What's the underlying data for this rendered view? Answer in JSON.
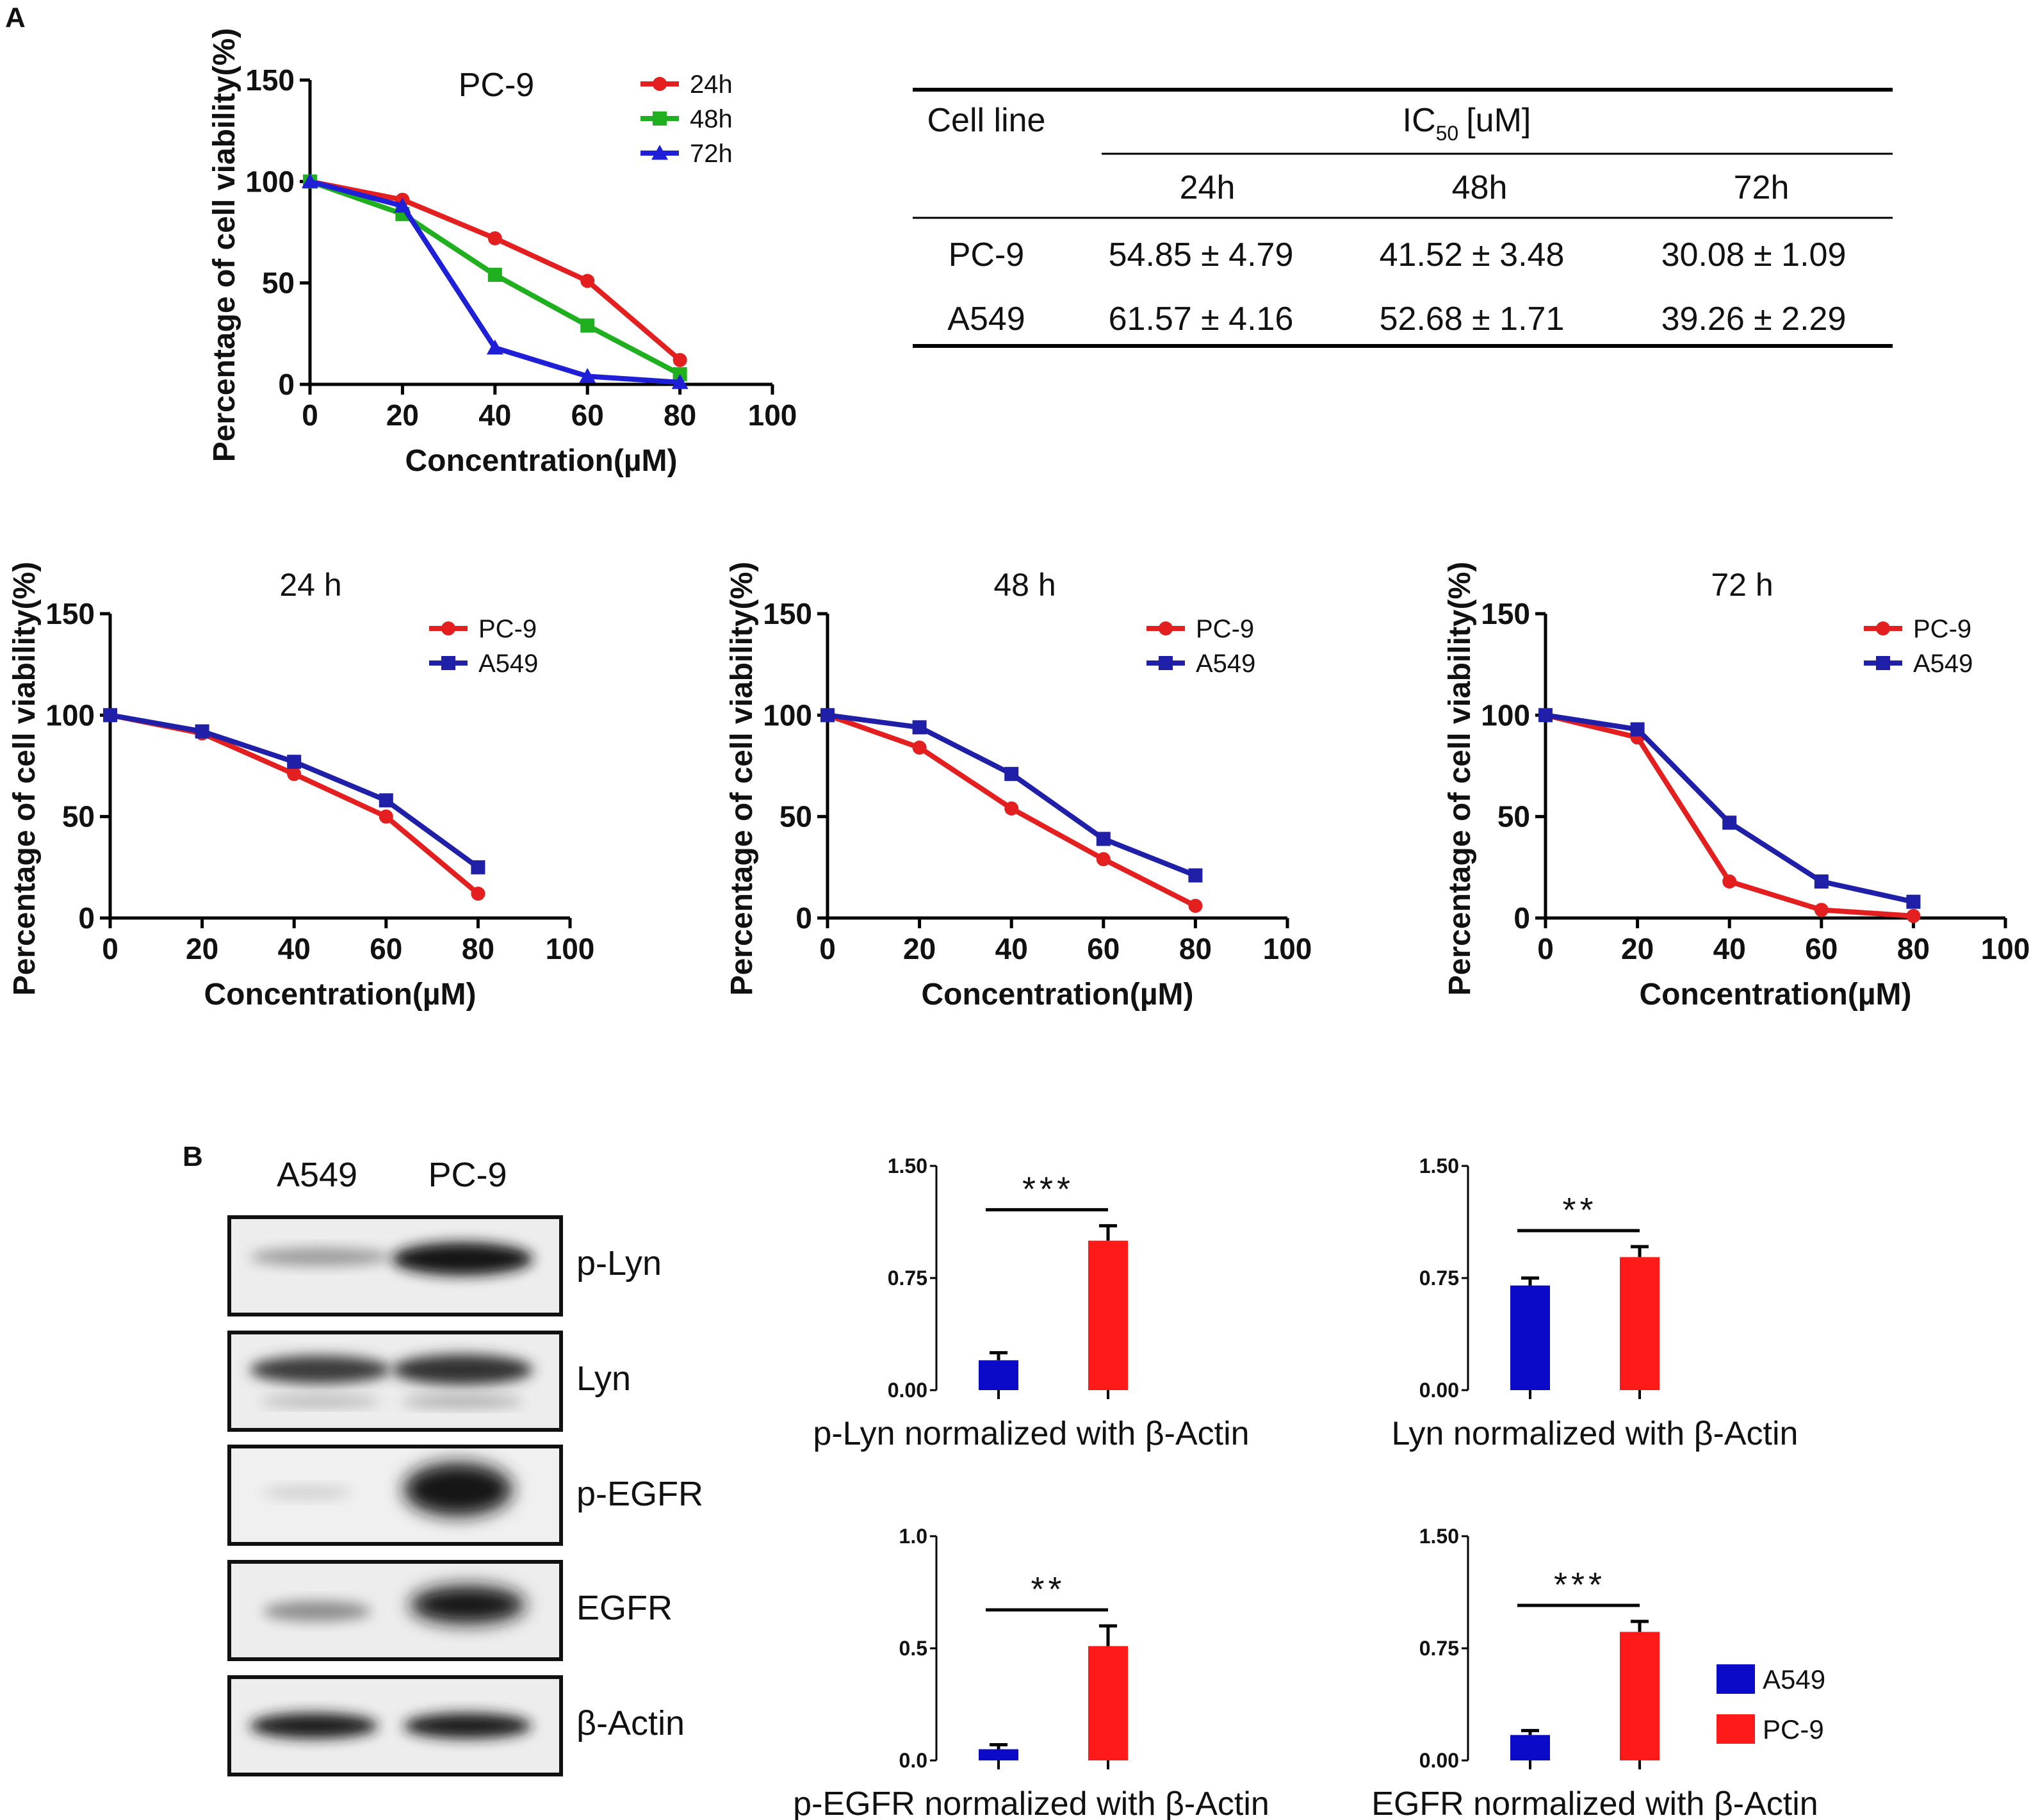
{
  "colors": {
    "red": "#e41f1f",
    "green": "#1faf1f",
    "blue": "#1f1fd8",
    "navy": "#1f1fa8",
    "barBlue": "#0a0ac8",
    "barRed": "#ff1a1a"
  },
  "panels": {
    "a": "A",
    "b": "B"
  },
  "axis": {
    "ylabel": "Percentage of cell viability(%)",
    "xlabel": "Concentration(µM)",
    "yticks": [
      "0",
      "50",
      "100",
      "150"
    ],
    "xticks": [
      "0",
      "20",
      "40",
      "60",
      "80",
      "100"
    ]
  },
  "ic50": {
    "col_cell_line": "Cell line",
    "col_ic50": "IC",
    "col_ic50_sub": "50",
    "col_ic50_unit": "[uM]",
    "times": [
      "24h",
      "48h",
      "72h"
    ],
    "rows": [
      {
        "cell": "PC-9",
        "values": [
          "54.85 ± 4.79",
          "41.52 ± 3.48",
          "30.08 ± 1.09"
        ]
      },
      {
        "cell": "A549",
        "values": [
          "61.57 ± 4.16",
          "52.68 ± 1.71",
          "39.26 ± 2.29"
        ]
      }
    ]
  },
  "blot": {
    "lanes": [
      "A549",
      "PC-9"
    ],
    "proteins": [
      "p-Lyn",
      "Lyn",
      "p-EGFR",
      "EGFR",
      "β-Actin"
    ]
  },
  "chart_data": [
    {
      "type": "line",
      "title": "PC-9",
      "xlabel": "Concentration(µM)",
      "ylabel": "Percentage of cell viability(%)",
      "xlim": [
        0,
        100
      ],
      "ylim": [
        0,
        150
      ],
      "x": [
        0,
        20,
        40,
        60,
        80
      ],
      "series": [
        {
          "name": "24h",
          "marker": "circle",
          "values": [
            100,
            91,
            72,
            51,
            12
          ]
        },
        {
          "name": "48h",
          "marker": "square",
          "values": [
            100,
            84,
            54,
            29,
            5
          ]
        },
        {
          "name": "72h",
          "marker": "triangle",
          "values": [
            100,
            88,
            18,
            4,
            1
          ]
        }
      ]
    },
    {
      "type": "line",
      "title": "24 h",
      "xlabel": "Concentration(µM)",
      "ylabel": "Percentage of cell viability(%)",
      "xlim": [
        0,
        100
      ],
      "ylim": [
        0,
        150
      ],
      "x": [
        0,
        20,
        40,
        60,
        80
      ],
      "series": [
        {
          "name": "PC-9",
          "marker": "circle",
          "values": [
            100,
            91,
            71,
            50,
            12
          ]
        },
        {
          "name": "A549",
          "marker": "square",
          "values": [
            100,
            92,
            77,
            58,
            25
          ]
        }
      ]
    },
    {
      "type": "line",
      "title": "48 h",
      "xlabel": "Concentration(µM)",
      "ylabel": "Percentage of cell viability(%)",
      "xlim": [
        0,
        100
      ],
      "ylim": [
        0,
        150
      ],
      "x": [
        0,
        20,
        40,
        60,
        80
      ],
      "series": [
        {
          "name": "PC-9",
          "marker": "circle",
          "values": [
            100,
            84,
            54,
            29,
            6
          ]
        },
        {
          "name": "A549",
          "marker": "square",
          "values": [
            100,
            94,
            71,
            39,
            21
          ]
        }
      ]
    },
    {
      "type": "line",
      "title": "72 h",
      "xlabel": "Concentration(µM)",
      "ylabel": "Percentage of cell viability(%)",
      "xlim": [
        0,
        100
      ],
      "ylim": [
        0,
        150
      ],
      "x": [
        0,
        20,
        40,
        60,
        80
      ],
      "series": [
        {
          "name": "PC-9",
          "marker": "circle",
          "values": [
            100,
            89,
            18,
            4,
            1
          ]
        },
        {
          "name": "A549",
          "marker": "square",
          "values": [
            100,
            93,
            47,
            18,
            8
          ]
        }
      ]
    },
    {
      "type": "bar",
      "title": "p-Lyn normalized with β-Actin",
      "categories": [
        "A549",
        "PC-9"
      ],
      "values": [
        0.2,
        1.0
      ],
      "errors": [
        0.05,
        0.1
      ],
      "ylim": [
        0,
        1.5
      ],
      "yticks": [
        "0.00",
        "0.75",
        "1.50"
      ],
      "significance": "***"
    },
    {
      "type": "bar",
      "title": "Lyn normalized with β-Actin",
      "categories": [
        "A549",
        "PC-9"
      ],
      "values": [
        0.7,
        0.89
      ],
      "errors": [
        0.05,
        0.07
      ],
      "ylim": [
        0,
        1.5
      ],
      "yticks": [
        "0.00",
        "0.75",
        "1.50"
      ],
      "significance": "**"
    },
    {
      "type": "bar",
      "title": "p-EGFR normalized with β-Actin",
      "categories": [
        "A549",
        "PC-9"
      ],
      "values": [
        0.05,
        0.51
      ],
      "errors": [
        0.02,
        0.09
      ],
      "ylim": [
        0,
        1.0
      ],
      "yticks": [
        "0.0",
        "0.5",
        "1.0"
      ],
      "significance": "**"
    },
    {
      "type": "bar",
      "title": "EGFR normalized with β-Actin",
      "categories": [
        "A549",
        "PC-9"
      ],
      "values": [
        0.17,
        0.86
      ],
      "errors": [
        0.03,
        0.07
      ],
      "ylim": [
        0,
        1.5
      ],
      "yticks": [
        "0.00",
        "0.75",
        "1.50"
      ],
      "significance": "***"
    }
  ]
}
